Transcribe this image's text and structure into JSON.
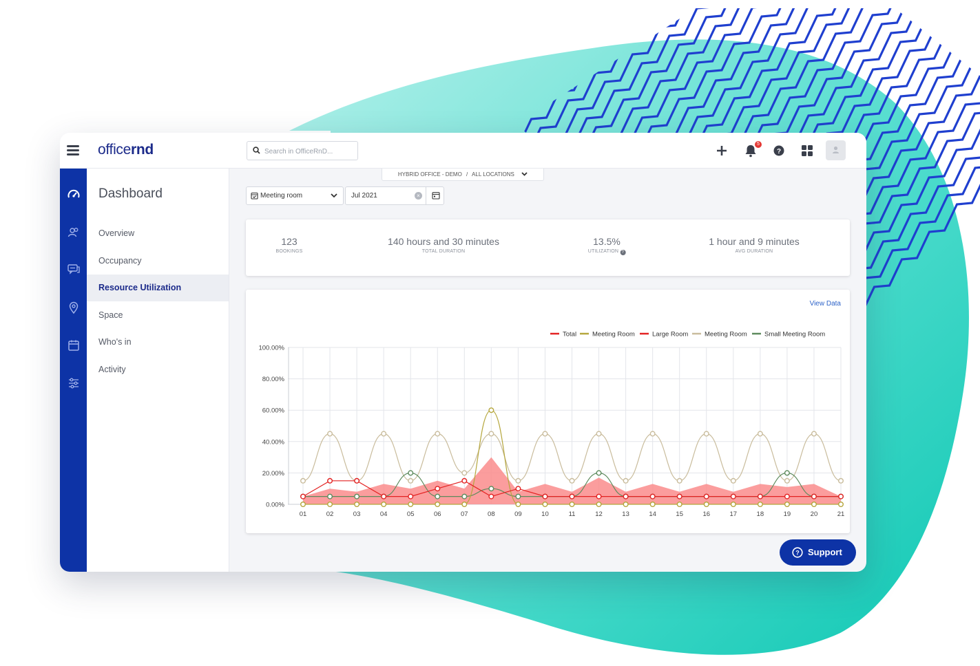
{
  "app": {
    "logo_light": "office",
    "logo_bold": "rnd"
  },
  "topbar": {
    "search_placeholder": "Search in OfficeRnD...",
    "notification_count": "5",
    "icons": [
      "menu-icon",
      "search-icon",
      "plus-icon",
      "bell-icon",
      "help-icon",
      "apps-icon",
      "user-icon"
    ]
  },
  "rail": {
    "icons": [
      "dashboard-icon",
      "members-icon",
      "messages-icon",
      "location-pin-icon",
      "calendar-icon",
      "settings-sliders-icon"
    ]
  },
  "sidebar": {
    "title": "Dashboard",
    "items": [
      {
        "label": "Overview",
        "active": false
      },
      {
        "label": "Occupancy",
        "active": false
      },
      {
        "label": "Resource Utilization",
        "active": true
      },
      {
        "label": "Space",
        "active": false
      },
      {
        "label": "Who's in",
        "active": false
      },
      {
        "label": "Activity",
        "active": false
      }
    ]
  },
  "location": {
    "office": "HYBRID OFFICE - DEMO",
    "separator": "/",
    "scope": "ALL LOCATIONS"
  },
  "filters": {
    "resource_type": "Meeting room",
    "month": "Jul 2021"
  },
  "stats": [
    {
      "value": "123",
      "label": "BOOKINGS"
    },
    {
      "value": "140 hours and 30 minutes",
      "label": "TOTAL DURATION"
    },
    {
      "value": "13.5%",
      "label": "UTILIZATION"
    },
    {
      "value": "1 hour and 9 minutes",
      "label": "AVG DURATION"
    }
  ],
  "chart_card": {
    "view_data_label": "View Data"
  },
  "support": {
    "label": "Support"
  },
  "colors": {
    "brand_blue": "#0d33a6",
    "teal_blob": "#2fd3c4",
    "total": "#e32222",
    "total_fill": "#fa8c8c",
    "meeting_room_1": "#b5a63c",
    "large_room": "#e32222",
    "meeting_room_2": "#c9bc9c",
    "small_meeting_room": "#5c8a5c"
  },
  "chart_data": {
    "type": "line",
    "x": [
      "01",
      "02",
      "03",
      "04",
      "05",
      "06",
      "07",
      "08",
      "09",
      "10",
      "11",
      "12",
      "13",
      "14",
      "15",
      "16",
      "17",
      "18",
      "19",
      "20",
      "21"
    ],
    "yticks": [
      "0.00%",
      "20.00%",
      "40.00%",
      "60.00%",
      "80.00%",
      "100.00%"
    ],
    "ylim": [
      0,
      100
    ],
    "legend_position": "top-right",
    "grid": true,
    "series": [
      {
        "name": "Total",
        "style": "area",
        "values": [
          5,
          10,
          8,
          13,
          10,
          15,
          10,
          30,
          8,
          13,
          8,
          17,
          8,
          13,
          8,
          13,
          8,
          13,
          11,
          13,
          5
        ]
      },
      {
        "name": "Meeting Room",
        "values": [
          0,
          0,
          0,
          0,
          0,
          0,
          0,
          60,
          0,
          0,
          0,
          0,
          0,
          0,
          0,
          0,
          0,
          0,
          0,
          0,
          0
        ]
      },
      {
        "name": "Large Room",
        "values": [
          5,
          15,
          15,
          5,
          5,
          10,
          15,
          5,
          10,
          5,
          5,
          5,
          5,
          5,
          5,
          5,
          5,
          5,
          5,
          5,
          5
        ]
      },
      {
        "name": "Meeting Room",
        "values": [
          15,
          45,
          15,
          45,
          15,
          45,
          20,
          45,
          15,
          45,
          15,
          45,
          15,
          45,
          15,
          45,
          15,
          45,
          15,
          45,
          15
        ]
      },
      {
        "name": "Small Meeting Room",
        "values": [
          5,
          5,
          5,
          5,
          20,
          5,
          5,
          10,
          5,
          5,
          5,
          20,
          5,
          5,
          5,
          5,
          5,
          5,
          20,
          5,
          5
        ]
      }
    ]
  }
}
